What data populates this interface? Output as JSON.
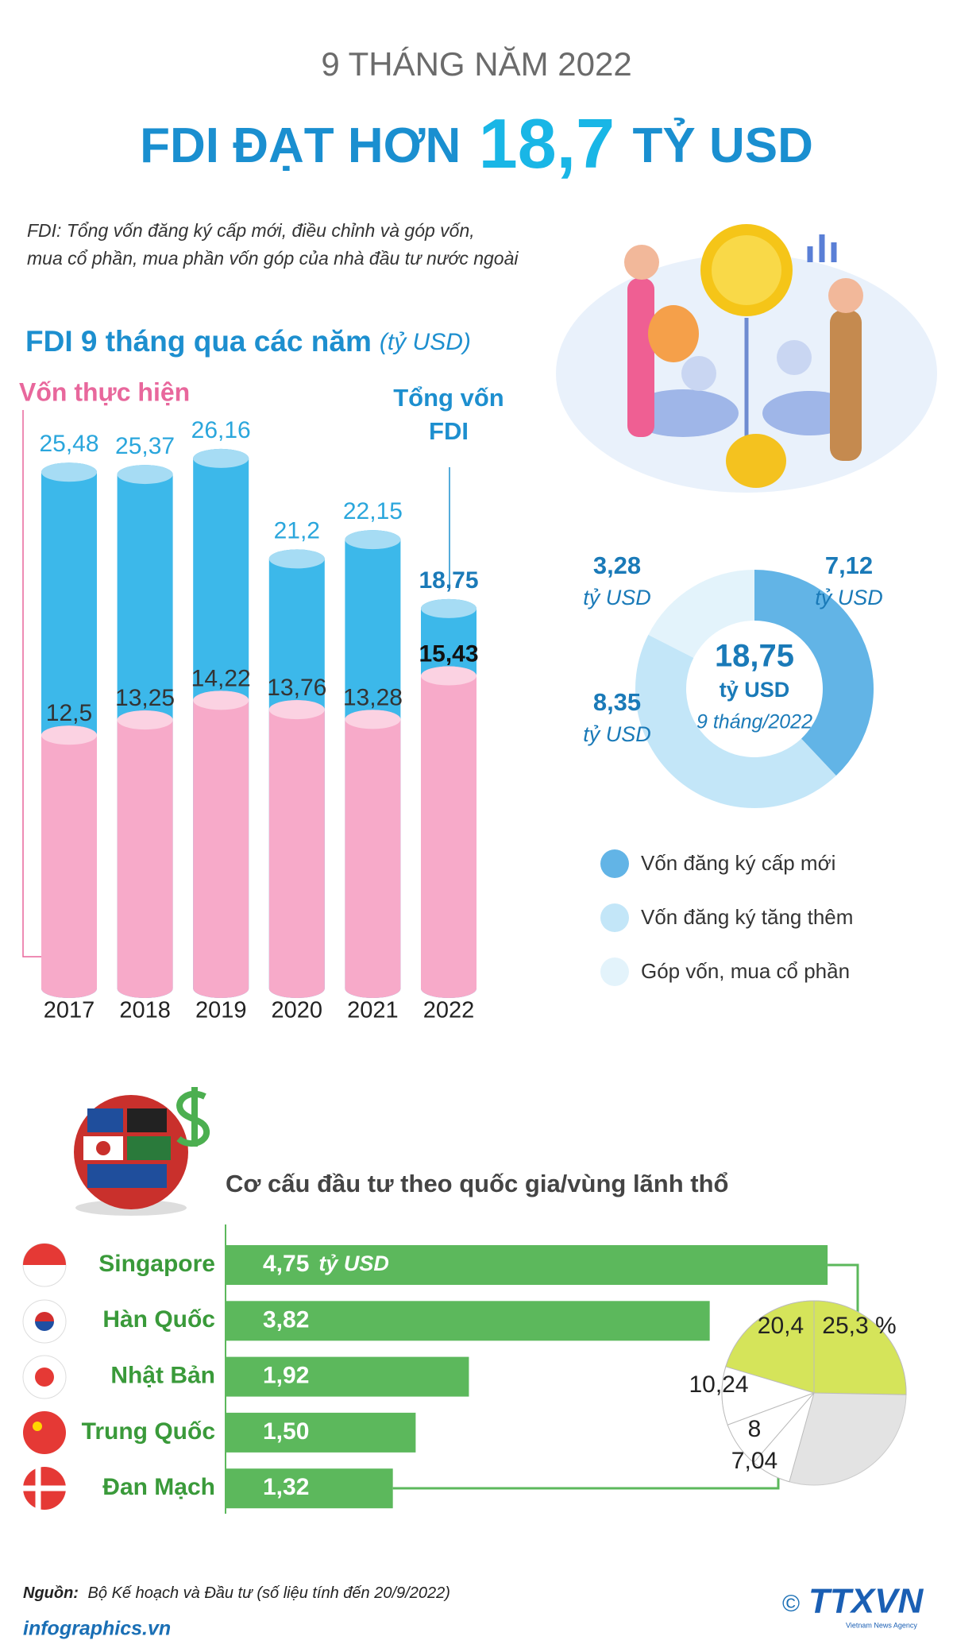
{
  "header": {
    "kicker": "9 THÁNG NĂM 2022",
    "title_prefix": "FDI ĐẠT HƠN",
    "title_number": "18,7",
    "title_suffix": "TỶ USD"
  },
  "note": [
    "FDI: Tổng vốn đăng ký cấp mới, điều chỉnh và góp vốn,",
    "mua cổ phần, mua phần vốn góp của nhà đầu tư nước ngoài"
  ],
  "chart_data": [
    {
      "type": "bar",
      "title": "FDI 9 tháng qua các năm",
      "unit": "(tỷ USD)",
      "categories": [
        "2017",
        "2018",
        "2019",
        "2020",
        "2021",
        "2022"
      ],
      "series": [
        {
          "name": "Tổng vốn FDI",
          "color": "#3cb8ea",
          "values": [
            25.48,
            25.37,
            26.16,
            21.2,
            22.15,
            18.75
          ],
          "value_labels": [
            "25,48",
            "25,37",
            "26,16",
            "21,2",
            "22,15",
            "18,75"
          ]
        },
        {
          "name": "Vốn thực hiện",
          "color": "#f7aac9",
          "values": [
            12.5,
            13.25,
            14.22,
            13.76,
            13.28,
            15.43
          ],
          "value_labels": [
            "12,5",
            "13,25",
            "14,22",
            "13,76",
            "13,28",
            "15,43"
          ]
        }
      ]
    },
    {
      "type": "donut",
      "categories": [
        "Vốn đăng ký cấp mới",
        "Vốn đăng ký tăng thêm",
        "Góp vốn, mua cổ phần"
      ],
      "values": [
        7.12,
        8.35,
        3.28
      ],
      "value_labels": [
        "7,12",
        "8,35",
        "3,28"
      ],
      "colors": [
        "#62b4e6",
        "#c3e6f8",
        "#e3f3fb"
      ],
      "unit": "tỷ USD",
      "total": 18.75,
      "total_label": "18,75",
      "period": "9 tháng/2022"
    },
    {
      "type": "hbar",
      "title": "Cơ cấu đầu tư theo quốc gia/vùng lãnh thổ",
      "categories": [
        "Singapore",
        "Hàn Quốc",
        "Nhật Bản",
        "Trung Quốc",
        "Đan Mạch"
      ],
      "values": [
        4.75,
        3.82,
        1.92,
        1.5,
        1.32
      ],
      "value_labels": [
        "4,75",
        "3,82",
        "1,92",
        "1,50",
        "1,32"
      ],
      "unit": "tỷ USD",
      "color": "#5cb85c"
    },
    {
      "type": "pie",
      "values": [
        25.3,
        20.4,
        10.24,
        8,
        7.04
      ],
      "value_labels": [
        "25,3 %",
        "20,4",
        "10,24",
        "8",
        "7,04"
      ],
      "colors": [
        "#d5e45a",
        "#d5e45a",
        "#ffffff",
        "#ffffff",
        "#ffffff"
      ]
    }
  ],
  "footer": {
    "source_label": "Nguồn:",
    "source": "Bộ Kế hoạch và Đầu tư (số liệu tính đến 20/9/2022)",
    "site": "infographics.vn",
    "copyright": "©",
    "logo": "TTXVN",
    "logo_sub": "Vietnam News Agency"
  }
}
